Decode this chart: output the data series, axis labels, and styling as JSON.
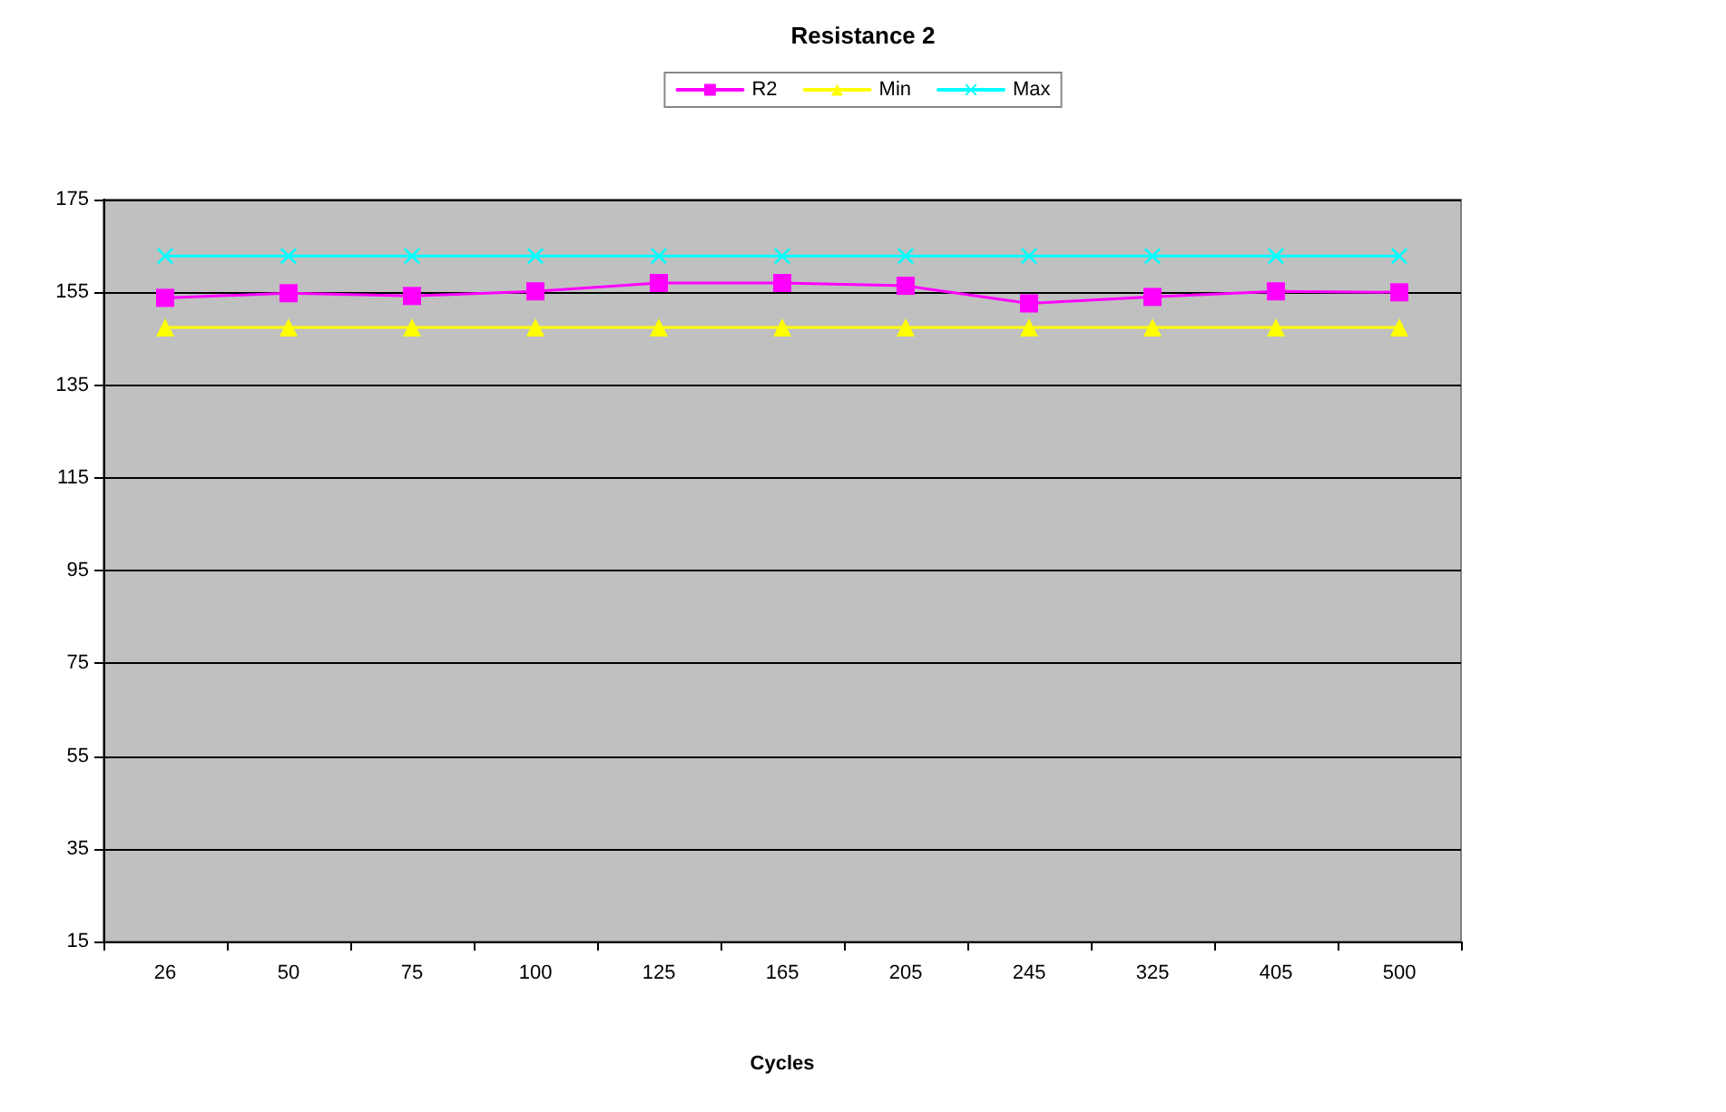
{
  "chart_data": {
    "type": "line",
    "title": "Resistance 2",
    "xlabel": "Cycles",
    "categories": [
      "26",
      "50",
      "75",
      "100",
      "125",
      "165",
      "205",
      "245",
      "325",
      "405",
      "500"
    ],
    "series": [
      {
        "name": "R2",
        "color": "#ff00ff",
        "marker": "square",
        "values": [
          153.8,
          154.8,
          154.2,
          155.2,
          157,
          157,
          156.4,
          152.6,
          154,
          155.2,
          155
        ]
      },
      {
        "name": "Min",
        "color": "#ffff00",
        "marker": "triangle",
        "values": [
          147.4,
          147.4,
          147.4,
          147.4,
          147.4,
          147.4,
          147.4,
          147.4,
          147.4,
          147.4,
          147.4
        ]
      },
      {
        "name": "Max",
        "color": "#00ffff",
        "marker": "cross",
        "values": [
          162.8,
          162.8,
          162.8,
          162.8,
          162.8,
          162.8,
          162.8,
          162.8,
          162.8,
          162.8,
          162.8
        ]
      }
    ],
    "ylim": [
      15,
      175
    ],
    "yticks": [
      15,
      35,
      55,
      75,
      95,
      115,
      135,
      155,
      175
    ],
    "grid": "y",
    "legend": "top",
    "line_style": "solid"
  }
}
